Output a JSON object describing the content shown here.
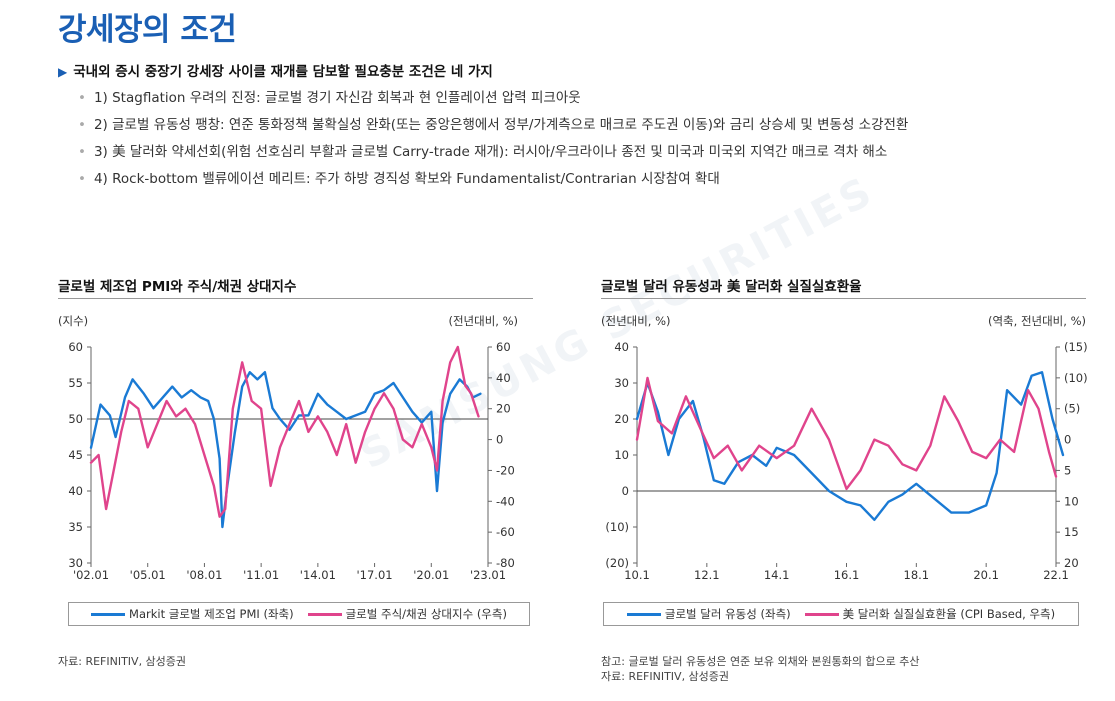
{
  "page": {
    "title": "강세장의 조건",
    "headline": "국내외 증시 중장기 강세장 사이클 재개를 담보할 필요충분 조건은 네 가지",
    "bullets": [
      "1) Stagflation 우려의 진정: 글로벌 경기 자신감 회복과 현 인플레이션 압력 피크아웃",
      "2) 글로벌 유동성 팽창: 연준 통화정책 불확실성 완화(또는 중앙은행에서 정부/가계측으로 매크로 주도권 이동)와 금리 상승세 및 변동성 소강전환",
      "3) 美 달러화 약세선회(위험 선호심리 부활과 글로벌 Carry-trade 재개): 러시아/우크라이나 종전 및 미국과 미국외 지역간 매크로 격차 해소",
      "4) Rock-bottom 밸류에이션 메리트: 주가 하방 경직성 확보와 Fundamentalist/Contrarian 시장참여 확대"
    ],
    "watermark": "SAMSUNG SECURITIES"
  },
  "colors": {
    "blue": "#1a7ad4",
    "pink": "#e0448c",
    "title_blue": "#1a5fb4"
  },
  "chart_data": [
    {
      "type": "line",
      "title": "글로벌 제조업 PMI와 주식/채권 상대지수",
      "ylabel": "(지수)",
      "y2label": "(전년대비, %)",
      "x_ticks": [
        "'02.01",
        "'05.01",
        "'08.01",
        "'11.01",
        "'14.01",
        "'17.01",
        "'20.01",
        "'23.01"
      ],
      "ylim": [
        30,
        60
      ],
      "y_ticks": [
        "60",
        "55",
        "50",
        "45",
        "40",
        "35",
        "30"
      ],
      "y2lim": [
        -80,
        60
      ],
      "y2_ticks": [
        "60",
        "40",
        "20",
        "0",
        "-20",
        "-40",
        "-60",
        "-80"
      ],
      "reference_line": 50,
      "xlim": [
        2002.0,
        2023.0
      ],
      "series": [
        {
          "name": "Markit 글로벌 제조업 PMI (좌축)",
          "axis": "left",
          "color": "#1a7ad4",
          "x": [
            2002.0,
            2002.5,
            2003.0,
            2003.3,
            2003.8,
            2004.2,
            2004.8,
            2005.3,
            2005.8,
            2006.3,
            2006.8,
            2007.3,
            2007.8,
            2008.2,
            2008.5,
            2008.8,
            2008.95,
            2009.2,
            2009.6,
            2010.0,
            2010.4,
            2010.8,
            2011.2,
            2011.6,
            2012.0,
            2012.5,
            2013.0,
            2013.5,
            2014.0,
            2014.5,
            2015.0,
            2015.5,
            2016.0,
            2016.5,
            2017.0,
            2017.5,
            2018.0,
            2018.5,
            2019.0,
            2019.5,
            2020.0,
            2020.3,
            2020.6,
            2021.0,
            2021.5,
            2021.9,
            2022.2,
            2022.6
          ],
          "values": [
            46.0,
            52.0,
            50.5,
            47.5,
            53.0,
            55.5,
            53.5,
            51.5,
            53.0,
            54.5,
            53.0,
            54.0,
            53.0,
            52.5,
            50.0,
            44.5,
            35.0,
            40.5,
            48.0,
            54.5,
            56.5,
            55.5,
            56.5,
            51.5,
            50.0,
            48.5,
            50.5,
            50.5,
            53.5,
            52.0,
            51.0,
            50.0,
            50.5,
            51.0,
            53.5,
            54.0,
            55.0,
            53.0,
            51.0,
            49.5,
            51.0,
            40.0,
            49.5,
            53.5,
            55.5,
            54.5,
            53.0,
            53.5
          ]
        },
        {
          "name": "글로벌 주식/채권 상대지수 (우측)",
          "axis": "right",
          "color": "#e0448c",
          "x": [
            2002.0,
            2002.4,
            2002.8,
            2003.2,
            2003.6,
            2004.0,
            2004.5,
            2005.0,
            2005.5,
            2006.0,
            2006.5,
            2007.0,
            2007.5,
            2008.0,
            2008.5,
            2008.8,
            2009.1,
            2009.5,
            2010.0,
            2010.5,
            2011.0,
            2011.5,
            2012.0,
            2012.5,
            2013.0,
            2013.5,
            2014.0,
            2014.5,
            2015.0,
            2015.5,
            2016.0,
            2016.5,
            2017.0,
            2017.5,
            2018.0,
            2018.5,
            2019.0,
            2019.5,
            2020.0,
            2020.3,
            2020.6,
            2021.0,
            2021.4,
            2021.8,
            2022.1,
            2022.5
          ],
          "values": [
            -15.0,
            -10.0,
            -45.0,
            -20.0,
            5.0,
            25.0,
            20.0,
            -5.0,
            10.0,
            25.0,
            15.0,
            20.0,
            10.0,
            -10.0,
            -30.0,
            -50.0,
            -45.0,
            20.0,
            50.0,
            25.0,
            20.0,
            -30.0,
            -5.0,
            10.0,
            25.0,
            5.0,
            15.0,
            5.0,
            -10.0,
            10.0,
            -15.0,
            5.0,
            20.0,
            30.0,
            20.0,
            0.0,
            -5.0,
            10.0,
            -5.0,
            -20.0,
            25.0,
            50.0,
            60.0,
            35.0,
            30.0,
            15.0
          ]
        }
      ]
    },
    {
      "type": "line",
      "title": "글로벌 달러 유동성과 美 달러화 실질실효환율",
      "ylabel": "(전년대비, %)",
      "y2label": "(역축, 전년대비, %)",
      "x_ticks": [
        "10.1",
        "12.1",
        "14.1",
        "16.1",
        "18.1",
        "20.1",
        "22.1"
      ],
      "ylim": [
        -20,
        40
      ],
      "y_ticks": [
        "40",
        "30",
        "20",
        "10",
        "0",
        "(10)",
        "(20)"
      ],
      "y2lim": [
        -15,
        20
      ],
      "y2_ticks": [
        "(15)",
        "(10)",
        "(5)",
        "0",
        "5",
        "10",
        "15",
        "20"
      ],
      "y2_inverted": true,
      "reference_line": 0,
      "xlim": [
        2010.0,
        2022.0
      ],
      "series": [
        {
          "name": "글로벌 달러 유동성 (좌측)",
          "axis": "left",
          "color": "#1a7ad4",
          "x": [
            2010.0,
            2010.3,
            2010.6,
            2010.9,
            2011.2,
            2011.6,
            2011.9,
            2012.2,
            2012.5,
            2012.9,
            2013.3,
            2013.7,
            2014.0,
            2014.5,
            2015.0,
            2015.5,
            2016.0,
            2016.4,
            2016.8,
            2017.2,
            2017.6,
            2018.0,
            2018.5,
            2019.0,
            2019.5,
            2020.0,
            2020.3,
            2020.6,
            2021.0,
            2021.3,
            2021.6,
            2021.9,
            2022.2
          ],
          "values": [
            20.0,
            30.0,
            22.0,
            10.0,
            20.0,
            25.0,
            15.0,
            3.0,
            2.0,
            8.0,
            10.0,
            7.0,
            12.0,
            10.0,
            5.0,
            0.0,
            -3.0,
            -4.0,
            -8.0,
            -3.0,
            -1.0,
            2.0,
            -2.0,
            -6.0,
            -6.0,
            -4.0,
            5.0,
            28.0,
            24.0,
            32.0,
            33.0,
            20.0,
            10.0
          ]
        },
        {
          "name": "美 달러화 실질실효환율 (CPI Based, 우측)",
          "axis": "right",
          "color": "#e0448c",
          "x": [
            2010.0,
            2010.3,
            2010.6,
            2011.0,
            2011.4,
            2011.8,
            2012.2,
            2012.6,
            2013.0,
            2013.5,
            2014.0,
            2014.5,
            2015.0,
            2015.5,
            2016.0,
            2016.4,
            2016.8,
            2017.2,
            2017.6,
            2018.0,
            2018.4,
            2018.8,
            2019.2,
            2019.6,
            2020.0,
            2020.4,
            2020.8,
            2021.2,
            2021.5,
            2021.8,
            2022.0
          ],
          "values": [
            0.0,
            -10.0,
            -3.0,
            -1.0,
            -7.0,
            -2.0,
            3.0,
            1.0,
            5.0,
            1.0,
            3.0,
            1.0,
            -5.0,
            0.0,
            8.0,
            5.0,
            0.0,
            1.0,
            4.0,
            5.0,
            1.0,
            -7.0,
            -3.0,
            2.0,
            3.0,
            0.0,
            2.0,
            -8.0,
            -5.0,
            2.0,
            6.0
          ]
        }
      ]
    }
  ],
  "sources": {
    "left": "자료: REFINITIV, 삼성증권",
    "right_note": "참고: 글로벌 달러 유동성은 연준 보유 외채와 본원통화의 합으로 추산",
    "right_source": "자료: REFINITIV, 삼성증권"
  }
}
